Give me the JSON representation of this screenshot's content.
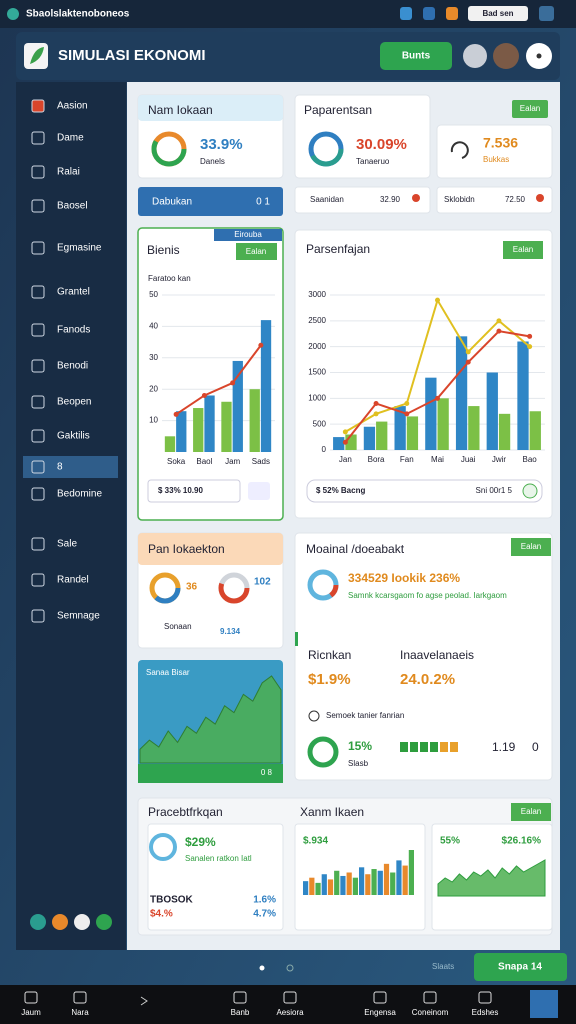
{
  "status_bar": {
    "app": "Sbaolslaktenoboneos",
    "account": "Bad sen"
  },
  "header": {
    "title": "SIMULASI EKONOMI",
    "button": "Bunts"
  },
  "sidebar": {
    "items": [
      "Aasion",
      "Dame",
      "Ralai",
      "Baosel",
      "Egmasine",
      "Grantel",
      "Fanods",
      "Benodi",
      "Beopen",
      "Gaktilis",
      "8",
      "Bedomine",
      "Sale",
      "Randel",
      "Semnage"
    ]
  },
  "summary": {
    "card1": {
      "title": "Nam Iokaan",
      "value": "33.9%",
      "label": "Danels"
    },
    "card2": {
      "title": "Paparentsan",
      "badge": "Ealan",
      "value": "30.09%",
      "label": "Tanaeruo"
    },
    "card3": {
      "value": "7.536",
      "label": "Bukkas"
    },
    "strip1": {
      "label": "Dabukan",
      "value": "0 1"
    },
    "strip2": {
      "label": "Saanidan",
      "value": "32.90"
    },
    "strip3": {
      "label": "Sklobidn",
      "value": "72.50"
    }
  },
  "charts": {
    "small": {
      "type": "bar",
      "title": "Bienis",
      "badge": "Ealan",
      "tag": "Eirouba",
      "subtitle": "Faratoo kan",
      "categories": [
        "Soka",
        "Baol",
        "Jam",
        "Sads"
      ],
      "ylim": [
        0,
        50
      ],
      "yticks": [
        10,
        20,
        30,
        40,
        50
      ],
      "series": [
        {
          "color": "#7cc046",
          "values": [
            5,
            14,
            16,
            20
          ]
        },
        {
          "color": "#2f86c6",
          "values": [
            13,
            18,
            29,
            42
          ]
        },
        {
          "type": "line",
          "color": "#d9452b",
          "values": [
            12,
            18,
            22,
            34
          ]
        }
      ],
      "footer": "$ 33% 10.90"
    },
    "main": {
      "type": "bar",
      "title": "Parsenfajan",
      "badge": "Ealan",
      "categories": [
        "Jan",
        "Bora",
        "Fan",
        "Mai",
        "Juai",
        "Jwir",
        "Bao"
      ],
      "ylim": [
        0,
        3000
      ],
      "yticks": [
        0,
        500,
        1000,
        1500,
        2000,
        2500,
        3000
      ],
      "series": [
        {
          "color": "#2f86c6",
          "values": [
            250,
            450,
            850,
            1400,
            2200,
            1500,
            2100
          ]
        },
        {
          "color": "#7cc046",
          "values": [
            300,
            550,
            650,
            1000,
            850,
            700,
            750
          ]
        },
        {
          "type": "line",
          "color": "#e0c020",
          "values": [
            350,
            700,
            900,
            2900,
            1900,
            2500,
            2000
          ]
        },
        {
          "type": "line",
          "color": "#d9452b",
          "values": [
            150,
            900,
            700,
            1000,
            1700,
            2300,
            2200
          ]
        }
      ],
      "footer_left": "$ 52% Bacng",
      "footer_right": "Sni 00r1 5"
    },
    "area": {
      "type": "area",
      "label": "Sanaa Bisar",
      "color": "#4caf50",
      "values": [
        6,
        10,
        7,
        14,
        9,
        16,
        13,
        20,
        17,
        25,
        22,
        30,
        27,
        35,
        38,
        32
      ],
      "footer": "0 8"
    },
    "mini_bar": {
      "type": "bar",
      "value": "$.934",
      "colors": [
        "#2f86c6",
        "#e8892b",
        "#4caf50"
      ],
      "values": [
        8,
        10,
        7,
        12,
        9,
        14,
        11,
        13,
        10,
        16,
        12,
        15,
        14,
        18,
        13,
        20,
        17,
        26
      ]
    },
    "mini_area": {
      "type": "area",
      "value_left": "55%",
      "value_right": "$26.16%",
      "color": "#4caf50",
      "values": [
        6,
        9,
        7,
        11,
        8,
        12,
        10,
        13,
        9,
        14,
        11,
        15,
        12,
        14,
        16,
        18
      ]
    }
  },
  "allocation": {
    "title": "Pan Iokaekton",
    "left_value": "36",
    "left_label": "Sonaan",
    "right_value": "102",
    "right_label": "9.134"
  },
  "detail": {
    "title": "Moainal /doeabakt",
    "badge": "Ealan",
    "headline": "334529 Iookik 236%",
    "note": "Samnk kcarsgaom fo agse peolad. Iarkgaom",
    "left_title": "Ricnkan",
    "left_value": "$1.9%",
    "right_title": "Inaavelanaeis",
    "right_value": "24.0.2%",
    "row_title": "Semoek tanier fanrian",
    "donut_value": "15%",
    "donut_label": "Slasb",
    "stat": "1.19",
    "stat2": "0"
  },
  "bottom": {
    "title": "Pracebtfrkqan",
    "subtitle": "Xanm Ikaen",
    "badge": "Ealan",
    "card_value": "$29%",
    "card_line": "Sanalen ratkon Iatl",
    "row1_left": "TBOSOK",
    "row1_right": "1.6%",
    "row2_left": "$4.%",
    "row2_right": "4.7%"
  },
  "pager": {
    "button": "Snapa 14",
    "label": "Slaats"
  },
  "nav": [
    "Jaum",
    "Nara",
    "Banb",
    "Aesiora",
    "Engensa",
    "Coneinom",
    "Edshes"
  ]
}
